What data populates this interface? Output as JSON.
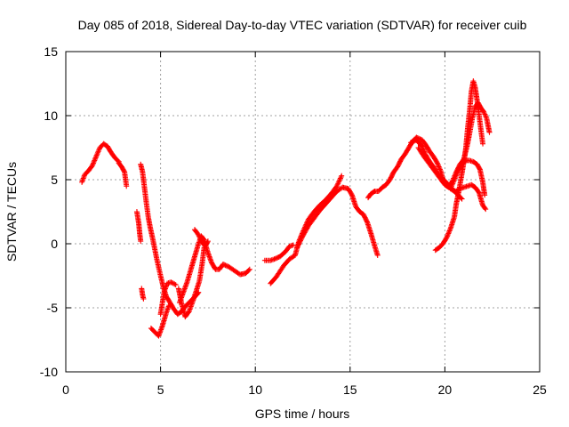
{
  "chart_data": {
    "type": "scatter",
    "title": "Day 085 of 2018, Sidereal Day-to-day VTEC variation (SDTVAR) for receiver cuib",
    "xlabel": "GPS time / hours",
    "ylabel": "SDTVAR / TECUs",
    "xlim": [
      0,
      25
    ],
    "ylim": [
      -10,
      15
    ],
    "xticks": [
      0,
      5,
      10,
      15,
      20,
      25
    ],
    "yticks": [
      -10,
      -5,
      0,
      5,
      10,
      15
    ],
    "grid": true,
    "marker": "+",
    "color": "#ff0000",
    "series": [
      {
        "name": "s1",
        "values": [
          [
            0.85,
            4.8
          ],
          [
            1.0,
            5.4
          ],
          [
            1.2,
            5.7
          ],
          [
            1.4,
            6.1
          ],
          [
            1.6,
            6.8
          ],
          [
            1.8,
            7.5
          ],
          [
            2.0,
            7.8
          ],
          [
            2.2,
            7.6
          ],
          [
            2.4,
            7.1
          ],
          [
            2.6,
            6.7
          ],
          [
            2.8,
            6.4
          ]
        ]
      },
      {
        "name": "s2",
        "values": [
          [
            2.8,
            6.3
          ],
          [
            2.95,
            6.0
          ],
          [
            3.1,
            5.6
          ],
          [
            3.2,
            4.5
          ]
        ]
      },
      {
        "name": "s3",
        "values": [
          [
            3.75,
            2.5
          ],
          [
            3.85,
            1.6
          ],
          [
            3.9,
            0.8
          ],
          [
            3.95,
            0.2
          ]
        ]
      },
      {
        "name": "s4",
        "values": [
          [
            3.95,
            6.2
          ],
          [
            4.05,
            5.6
          ],
          [
            4.15,
            4.4
          ],
          [
            4.25,
            3.2
          ],
          [
            4.35,
            2.1
          ],
          [
            4.45,
            1.3
          ],
          [
            4.6,
            0.3
          ],
          [
            4.8,
            -1.2
          ],
          [
            5.0,
            -2.5
          ],
          [
            5.15,
            -3.4
          ],
          [
            5.3,
            -4.1
          ],
          [
            5.5,
            -4.6
          ],
          [
            5.7,
            -5.1
          ],
          [
            5.9,
            -5.5
          ],
          [
            6.1,
            -5.3
          ],
          [
            6.3,
            -4.9
          ],
          [
            6.5,
            -4.6
          ],
          [
            6.7,
            -4.3
          ],
          [
            6.9,
            -4.0
          ],
          [
            7.0,
            -3.8
          ]
        ]
      },
      {
        "name": "s5",
        "values": [
          [
            4.0,
            -3.5
          ],
          [
            4.05,
            -4.0
          ],
          [
            4.1,
            -4.3
          ]
        ]
      },
      {
        "name": "s6",
        "values": [
          [
            4.5,
            -6.6
          ],
          [
            4.7,
            -6.9
          ],
          [
            4.9,
            -7.2
          ],
          [
            5.1,
            -6.4
          ],
          [
            5.3,
            -5.4
          ],
          [
            5.45,
            -4.8
          ]
        ]
      },
      {
        "name": "s7",
        "values": [
          [
            5.0,
            -5.5
          ],
          [
            5.2,
            -3.7
          ],
          [
            5.35,
            -3.1
          ],
          [
            5.55,
            -3.0
          ],
          [
            5.8,
            -3.2
          ]
        ]
      },
      {
        "name": "s8",
        "values": [
          [
            5.95,
            -3.5
          ],
          [
            6.1,
            -4.6
          ],
          [
            6.3,
            -5.7
          ],
          [
            6.5,
            -5.3
          ],
          [
            6.7,
            -4.5
          ],
          [
            6.9,
            -3.6
          ],
          [
            7.05,
            -2.9
          ],
          [
            7.2,
            -1.5
          ],
          [
            7.3,
            -0.3
          ]
        ]
      },
      {
        "name": "s9",
        "values": [
          [
            6.0,
            -4.6
          ],
          [
            6.2,
            -3.8
          ],
          [
            6.4,
            -3.0
          ],
          [
            6.6,
            -2.0
          ],
          [
            6.8,
            -1.0
          ],
          [
            7.0,
            0.0
          ],
          [
            7.15,
            0.6
          ],
          [
            7.3,
            0.3
          ],
          [
            7.5,
            -0.7
          ],
          [
            7.7,
            -1.5
          ],
          [
            7.9,
            -2.0
          ],
          [
            8.1,
            -2.0
          ],
          [
            8.3,
            -1.6
          ],
          [
            8.6,
            -1.8
          ],
          [
            8.9,
            -2.1
          ],
          [
            9.2,
            -2.4
          ],
          [
            9.5,
            -2.3
          ],
          [
            9.7,
            -2.0
          ]
        ]
      },
      {
        "name": "s10",
        "values": [
          [
            6.8,
            1.1
          ],
          [
            7.0,
            0.7
          ],
          [
            7.15,
            0.2
          ],
          [
            7.35,
            -0.2
          ],
          [
            7.5,
            0.2
          ]
        ]
      },
      {
        "name": "s11",
        "values": [
          [
            10.5,
            -1.3
          ],
          [
            10.8,
            -1.3
          ],
          [
            11.0,
            -1.2
          ],
          [
            11.3,
            -1.0
          ],
          [
            11.6,
            -0.6
          ],
          [
            11.8,
            -0.2
          ],
          [
            12.0,
            -0.1
          ]
        ]
      },
      {
        "name": "s12",
        "values": [
          [
            10.8,
            -3.1
          ],
          [
            11.1,
            -2.6
          ],
          [
            11.5,
            -1.7
          ],
          [
            11.8,
            -1.2
          ],
          [
            12.1,
            -0.9
          ],
          [
            12.3,
            0.2
          ],
          [
            12.5,
            0.9
          ],
          [
            12.8,
            1.9
          ],
          [
            13.1,
            2.5
          ],
          [
            13.4,
            3.0
          ],
          [
            13.7,
            3.4
          ],
          [
            14.0,
            3.9
          ],
          [
            14.3,
            4.5
          ],
          [
            14.55,
            5.3
          ]
        ]
      },
      {
        "name": "s13",
        "values": [
          [
            12.2,
            -0.3
          ],
          [
            12.5,
            0.6
          ],
          [
            12.8,
            1.4
          ],
          [
            13.1,
            2.0
          ],
          [
            13.4,
            2.6
          ],
          [
            13.7,
            3.1
          ],
          [
            14.0,
            3.6
          ],
          [
            14.3,
            4.1
          ],
          [
            14.6,
            4.4
          ],
          [
            14.9,
            4.3
          ],
          [
            15.1,
            3.8
          ],
          [
            15.3,
            2.9
          ],
          [
            15.5,
            2.5
          ],
          [
            15.7,
            2.3
          ],
          [
            15.9,
            1.7
          ],
          [
            16.1,
            0.8
          ],
          [
            16.3,
            -0.2
          ],
          [
            16.45,
            -0.9
          ]
        ]
      },
      {
        "name": "s14",
        "values": [
          [
            15.95,
            3.6
          ],
          [
            16.1,
            3.9
          ],
          [
            16.3,
            4.1
          ],
          [
            16.5,
            4.1
          ],
          [
            16.7,
            4.4
          ],
          [
            16.9,
            4.6
          ],
          [
            17.1,
            5.0
          ],
          [
            17.3,
            5.6
          ],
          [
            17.5,
            6.0
          ],
          [
            17.7,
            6.6
          ],
          [
            17.9,
            7.0
          ],
          [
            18.1,
            7.5
          ],
          [
            18.3,
            8.0
          ],
          [
            18.5,
            8.3
          ],
          [
            18.8,
            8.1
          ],
          [
            19.0,
            7.7
          ],
          [
            19.2,
            7.2
          ],
          [
            19.4,
            6.8
          ],
          [
            19.6,
            6.3
          ],
          [
            19.8,
            5.6
          ],
          [
            19.9,
            5.0
          ],
          [
            20.1,
            4.6
          ],
          [
            20.3,
            4.3
          ],
          [
            20.5,
            4.1
          ],
          [
            20.7,
            3.8
          ],
          [
            20.9,
            3.5
          ]
        ]
      },
      {
        "name": "s15",
        "values": [
          [
            18.2,
            7.9
          ],
          [
            18.5,
            8.1
          ],
          [
            18.8,
            7.6
          ],
          [
            19.0,
            6.9
          ],
          [
            19.2,
            6.4
          ],
          [
            19.4,
            6.0
          ],
          [
            19.6,
            5.5
          ],
          [
            19.8,
            5.2
          ],
          [
            20.0,
            4.9
          ],
          [
            20.2,
            4.6
          ],
          [
            20.4,
            4.2
          ],
          [
            20.6,
            4.1
          ],
          [
            20.8,
            4.3
          ],
          [
            21.0,
            4.4
          ],
          [
            21.2,
            4.5
          ],
          [
            21.4,
            4.6
          ],
          [
            21.6,
            4.4
          ],
          [
            21.8,
            4.0
          ],
          [
            22.0,
            3.0
          ],
          [
            22.15,
            2.7
          ]
        ]
      },
      {
        "name": "s16",
        "values": [
          [
            18.6,
            7.5
          ],
          [
            18.9,
            6.8
          ],
          [
            19.2,
            6.2
          ],
          [
            19.5,
            5.6
          ],
          [
            19.8,
            5.0
          ],
          [
            20.0,
            4.6
          ],
          [
            20.2,
            4.4
          ],
          [
            20.4,
            4.9
          ],
          [
            20.6,
            5.6
          ],
          [
            20.8,
            6.2
          ],
          [
            21.0,
            6.6
          ],
          [
            21.2,
            7.8
          ],
          [
            21.3,
            8.6
          ],
          [
            21.45,
            9.8
          ],
          [
            21.6,
            10.7
          ],
          [
            21.75,
            11.0
          ],
          [
            21.9,
            10.6
          ],
          [
            22.05,
            10.3
          ],
          [
            22.2,
            9.8
          ],
          [
            22.35,
            8.7
          ]
        ]
      },
      {
        "name": "s17",
        "values": [
          [
            19.5,
            -0.5
          ],
          [
            19.7,
            -0.3
          ],
          [
            19.9,
            0.0
          ],
          [
            20.1,
            0.5
          ],
          [
            20.3,
            1.2
          ],
          [
            20.5,
            2.1
          ],
          [
            20.6,
            3.1
          ],
          [
            20.75,
            4.2
          ],
          [
            20.9,
            5.5
          ],
          [
            21.0,
            6.4
          ],
          [
            21.1,
            7.4
          ],
          [
            21.2,
            9.0
          ],
          [
            21.3,
            10.3
          ],
          [
            21.4,
            11.9
          ],
          [
            21.5,
            12.7
          ],
          [
            21.6,
            12.2
          ],
          [
            21.7,
            11.2
          ],
          [
            21.8,
            10.1
          ],
          [
            21.9,
            8.9
          ],
          [
            22.0,
            7.8
          ]
        ]
      },
      {
        "name": "s18",
        "values": [
          [
            20.3,
            4.3
          ],
          [
            20.5,
            5.0
          ],
          [
            20.7,
            5.7
          ],
          [
            20.9,
            6.2
          ],
          [
            21.1,
            6.5
          ],
          [
            21.3,
            6.5
          ],
          [
            21.5,
            6.4
          ],
          [
            21.7,
            6.2
          ],
          [
            21.85,
            5.8
          ],
          [
            22.0,
            4.8
          ],
          [
            22.1,
            3.8
          ]
        ]
      }
    ]
  }
}
